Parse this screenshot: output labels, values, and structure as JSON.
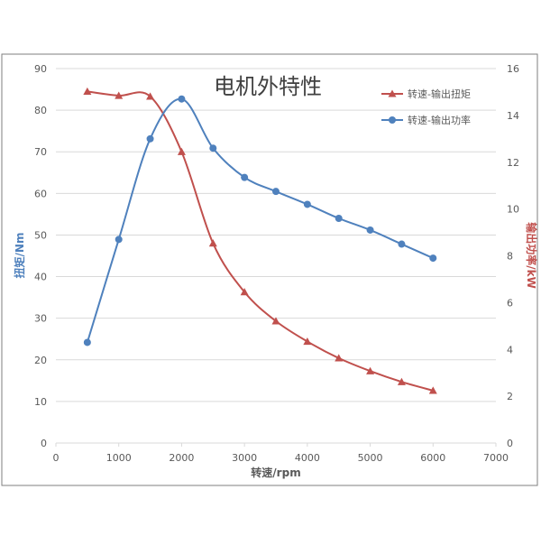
{
  "colors": {
    "torque": "#c0504d",
    "power": "#4f81bd",
    "axis": "#595959",
    "grid": "#d9d9d9",
    "frame": "#7f7f7f"
  },
  "chart_data": {
    "type": "line",
    "title": "电机外特性",
    "xlabel": "转速/rpm",
    "ylabel": "扭矩/Nm",
    "y2label": "输出功率/kW",
    "xlim": [
      0,
      7000
    ],
    "ylim": [
      0,
      90
    ],
    "y2lim": [
      0,
      16
    ],
    "xticks": [
      0,
      1000,
      2000,
      3000,
      4000,
      5000,
      6000,
      7000
    ],
    "yticks": [
      0,
      10,
      20,
      30,
      40,
      50,
      60,
      70,
      80,
      90
    ],
    "y2ticks": [
      0,
      2,
      4,
      6,
      8,
      10,
      12,
      14,
      16
    ],
    "grid": true,
    "legend_position": "top-right",
    "series": [
      {
        "name": "转速-输出扭矩",
        "axis": "left",
        "marker": "triangle",
        "color": "#c0504d",
        "x": [
          500,
          1000,
          1500,
          2000,
          2500,
          3000,
          3500,
          4000,
          4500,
          5000,
          5500,
          6000
        ],
        "y": [
          84.5,
          83.5,
          83.3,
          70,
          48,
          36.3,
          29.3,
          24.4,
          20.4,
          17.3,
          14.7,
          12.6
        ]
      },
      {
        "name": "转速-输出功率",
        "axis": "right",
        "marker": "circle",
        "color": "#4f81bd",
        "x": [
          500,
          1000,
          1500,
          2000,
          2500,
          3000,
          3500,
          4000,
          4500,
          5000,
          5500,
          6000
        ],
        "y": [
          4.3,
          8.7,
          13.0,
          14.7,
          12.6,
          11.35,
          10.75,
          10.2,
          9.6,
          9.1,
          8.5,
          7.9
        ]
      }
    ]
  }
}
